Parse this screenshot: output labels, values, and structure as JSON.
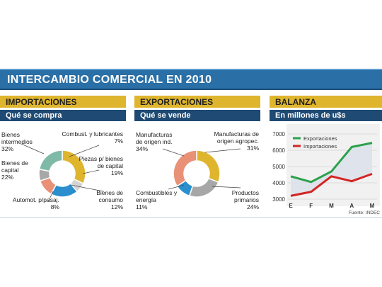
{
  "title": "INTERCAMBIO COMERCIAL EN 2010",
  "colors": {
    "gold": "#dfb52e",
    "teal": "#7fb9a7",
    "blue": "#2b8fce",
    "salmon": "#e99177",
    "gray": "#a7a7a7",
    "lightgray": "#d3d3d3",
    "green": "#2aa24a",
    "red": "#d42424",
    "navy": "#1e4a73"
  },
  "chart_data": [
    {
      "type": "pie",
      "title": "IMPORTACIONES",
      "subtitle": "Qué se compra",
      "labels": [
        "Bienes intermedios",
        "Combust. y lubricantes",
        "Piezas p/ bienes de capital",
        "Bienes de consumo",
        "Automot. p/pasaj.",
        "Bienes de capital"
      ],
      "values": [
        32,
        7,
        19,
        12,
        8,
        22
      ],
      "value_labels": [
        "32%",
        "7%",
        "19%",
        "12%",
        "8%",
        "22%"
      ],
      "colors": [
        "#dfb52e",
        "#d3d3d3",
        "#2b8fce",
        "#e99177",
        "#a7a7a7",
        "#7fb9a7"
      ]
    },
    {
      "type": "pie",
      "title": "EXPORTACIONES",
      "subtitle": "Qué se vende",
      "labels": [
        "Manufacturas de origen agropec.",
        "Productos primarios",
        "Combustibles y energía",
        "Manufacturas de origen ind."
      ],
      "values": [
        31,
        24,
        11,
        34
      ],
      "value_labels": [
        "31%",
        "24%",
        "11%",
        "34%"
      ],
      "colors": [
        "#dfb52e",
        "#a7a7a7",
        "#2b8fce",
        "#e99177"
      ]
    },
    {
      "type": "line",
      "title": "BALANZA",
      "subtitle": "En millones de u$s",
      "x": [
        "E",
        "F",
        "M",
        "A",
        "M"
      ],
      "series": [
        {
          "name": "Exportaciones",
          "color": "#2aa24a",
          "values": [
            4400,
            4050,
            4700,
            6200,
            6450
          ]
        },
        {
          "name": "Importaciones",
          "color": "#d42424",
          "values": [
            3200,
            3450,
            4400,
            4100,
            4550
          ]
        }
      ],
      "yticks": [
        "7000",
        "6000",
        "5000",
        "4000",
        "3000"
      ],
      "ylim": [
        3000,
        7000
      ],
      "source": "Fuente: INDEC"
    }
  ]
}
